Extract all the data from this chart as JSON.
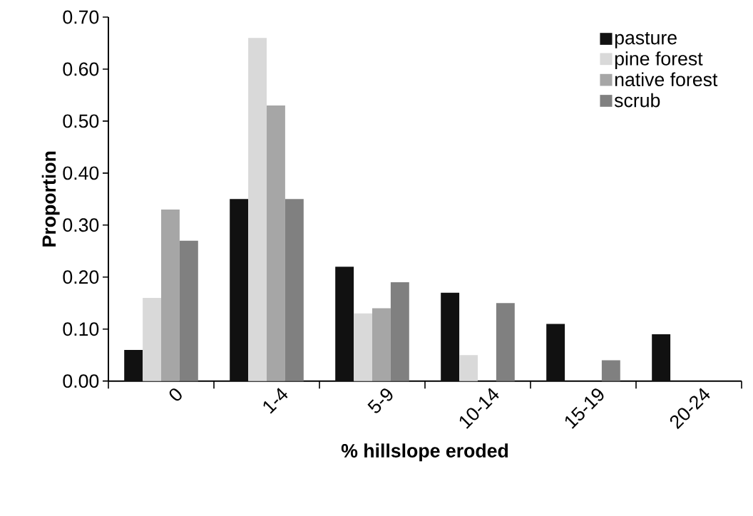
{
  "chart_data": {
    "type": "bar",
    "xlabel": "% hillslope eroded",
    "ylabel": "Proportion",
    "categories": [
      "0",
      "1-4",
      "5-9",
      "10-14",
      "15-19",
      "20-24"
    ],
    "series": [
      {
        "name": "pasture",
        "color": "#111111",
        "values": [
          0.06,
          0.35,
          0.22,
          0.17,
          0.11,
          0.09
        ]
      },
      {
        "name": "pine forest",
        "color": "#d9d9d9",
        "values": [
          0.16,
          0.66,
          0.13,
          0.05,
          0,
          0
        ]
      },
      {
        "name": "native forest",
        "color": "#a6a6a6",
        "values": [
          0.33,
          0.53,
          0.14,
          0,
          0,
          0
        ]
      },
      {
        "name": "scrub",
        "color": "#808080",
        "values": [
          0.27,
          0.35,
          0.19,
          0.15,
          0.04,
          0
        ]
      }
    ],
    "ylim": [
      0,
      0.7
    ],
    "yticks": [
      {
        "value": 0,
        "label": "0.00"
      },
      {
        "value": 0.1,
        "label": "0.10"
      },
      {
        "value": 0.2,
        "label": "0.20"
      },
      {
        "value": 0.3,
        "label": "0.30"
      },
      {
        "value": 0.4,
        "label": "0.40"
      },
      {
        "value": 0.5,
        "label": "0.50"
      },
      {
        "value": 0.6,
        "label": "0.60"
      },
      {
        "value": 0.7,
        "label": "0.70"
      }
    ],
    "grid": false,
    "legend": "top right"
  }
}
